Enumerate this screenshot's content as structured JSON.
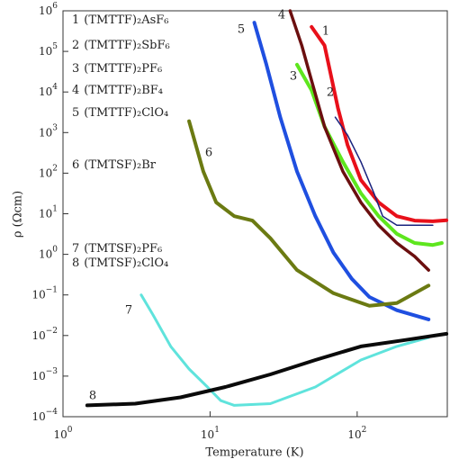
{
  "chart_data": {
    "type": "line",
    "x_label": "Temperature (K)",
    "y_label": "ρ (Ωcm)",
    "log_x": true,
    "log_y": true,
    "xlim": [
      1,
      410
    ],
    "ylim": [
      0.0001,
      1000000
    ],
    "xticks": [
      {
        "value": 1,
        "label": "10",
        "exp": "0"
      },
      {
        "value": 10,
        "label": "10",
        "exp": "1"
      },
      {
        "value": 100,
        "label": "10",
        "exp": "2"
      }
    ],
    "yticks": [
      {
        "value": 0.0001,
        "label": "10",
        "exp": "−4"
      },
      {
        "value": 0.001,
        "label": "10",
        "exp": "−3"
      },
      {
        "value": 0.01,
        "label": "10",
        "exp": "−2"
      },
      {
        "value": 0.1,
        "label": "10",
        "exp": "−1"
      },
      {
        "value": 1,
        "label": "10",
        "exp": "0"
      },
      {
        "value": 10,
        "label": "10",
        "exp": "1"
      },
      {
        "value": 100,
        "label": "10",
        "exp": "2"
      },
      {
        "value": 1000,
        "label": "10",
        "exp": "3"
      },
      {
        "value": 10000,
        "label": "10",
        "exp": "4"
      },
      {
        "value": 100000,
        "label": "10",
        "exp": "5"
      },
      {
        "value": 1000000,
        "label": "10",
        "exp": "6"
      }
    ],
    "series": [
      {
        "label": "1",
        "name": "(TMTTF)₂AsF₆",
        "color": "#e8101a",
        "width": 4,
        "x": [
          49,
          60,
          74,
          86,
          106,
          140,
          186,
          246,
          327,
          405
        ],
        "values": [
          400000,
          140000,
          4000,
          500,
          68,
          19,
          8.7,
          6.8,
          6.5,
          6.9
        ]
      },
      {
        "label": "2",
        "name": "(TMTTF)₂SbF₆",
        "color": "#1a237e",
        "width": 1.5,
        "x": [
          71,
          86,
          106,
          130,
          149,
          186,
          327
        ],
        "values": [
          2400,
          870,
          190,
          32,
          8.7,
          5.2,
          5.2
        ]
      },
      {
        "label": "3",
        "name": "(TMTTF)₂PF₆",
        "color": "#5ee61e",
        "width": 4,
        "x": [
          39,
          49,
          60,
          80,
          106,
          140,
          186,
          246,
          327,
          376
        ],
        "values": [
          47000,
          11000,
          1400,
          190,
          32,
          8.7,
          3.2,
          1.9,
          1.7,
          1.9
        ]
      },
      {
        "label": "4",
        "name": "(TMTTF)₂BF₄",
        "color": "#6b0f0f",
        "width": 3.5,
        "x": [
          35,
          42,
          49,
          60,
          80,
          106,
          140,
          186,
          246,
          306
        ],
        "values": [
          1000000,
          140000,
          19000,
          1400,
          110,
          19,
          5.2,
          1.9,
          0.89,
          0.41
        ]
      },
      {
        "label": "5",
        "name": "(TMTTF)₂ClO₄",
        "color": "#1f4fe0",
        "width": 4,
        "x": [
          20,
          24,
          30,
          39,
          52,
          69,
          92,
          121,
          186,
          306
        ],
        "values": [
          510000,
          51000,
          2400,
          110,
          8.7,
          1.1,
          0.25,
          0.089,
          0.042,
          0.025
        ]
      },
      {
        "label": "6",
        "name": "(TMTSF)₂Br",
        "color": "#6b7a12",
        "width": 4,
        "x": [
          7.2,
          9,
          11,
          14.6,
          19.4,
          25.7,
          39,
          69,
          121,
          186,
          306
        ],
        "values": [
          1900,
          110,
          19,
          8.7,
          6.8,
          2.5,
          0.41,
          0.11,
          0.054,
          0.063,
          0.17
        ]
      },
      {
        "label": "7",
        "name": "(TMTSF)₂PF₆",
        "color": "#5fe3dc",
        "width": 3,
        "x": [
          3.4,
          4.1,
          5.4,
          7.2,
          9.6,
          11.8,
          14.6,
          25.7,
          52,
          106,
          186,
          306
        ],
        "values": [
          0.1,
          0.032,
          0.0054,
          0.0015,
          0.00054,
          0.00025,
          0.00019,
          0.00021,
          0.00054,
          0.0025,
          0.0054,
          0.0089
        ]
      },
      {
        "label": "8",
        "name": "(TMTSF)₂ClO₄",
        "color": "#0a0a0a",
        "width": 4,
        "x": [
          1.46,
          3.1,
          6.3,
          12.7,
          25.7,
          52,
          106,
          214,
          405
        ],
        "values": [
          0.00019,
          0.00021,
          0.0003,
          0.00054,
          0.0011,
          0.0025,
          0.0054,
          0.0078,
          0.011
        ]
      }
    ]
  }
}
